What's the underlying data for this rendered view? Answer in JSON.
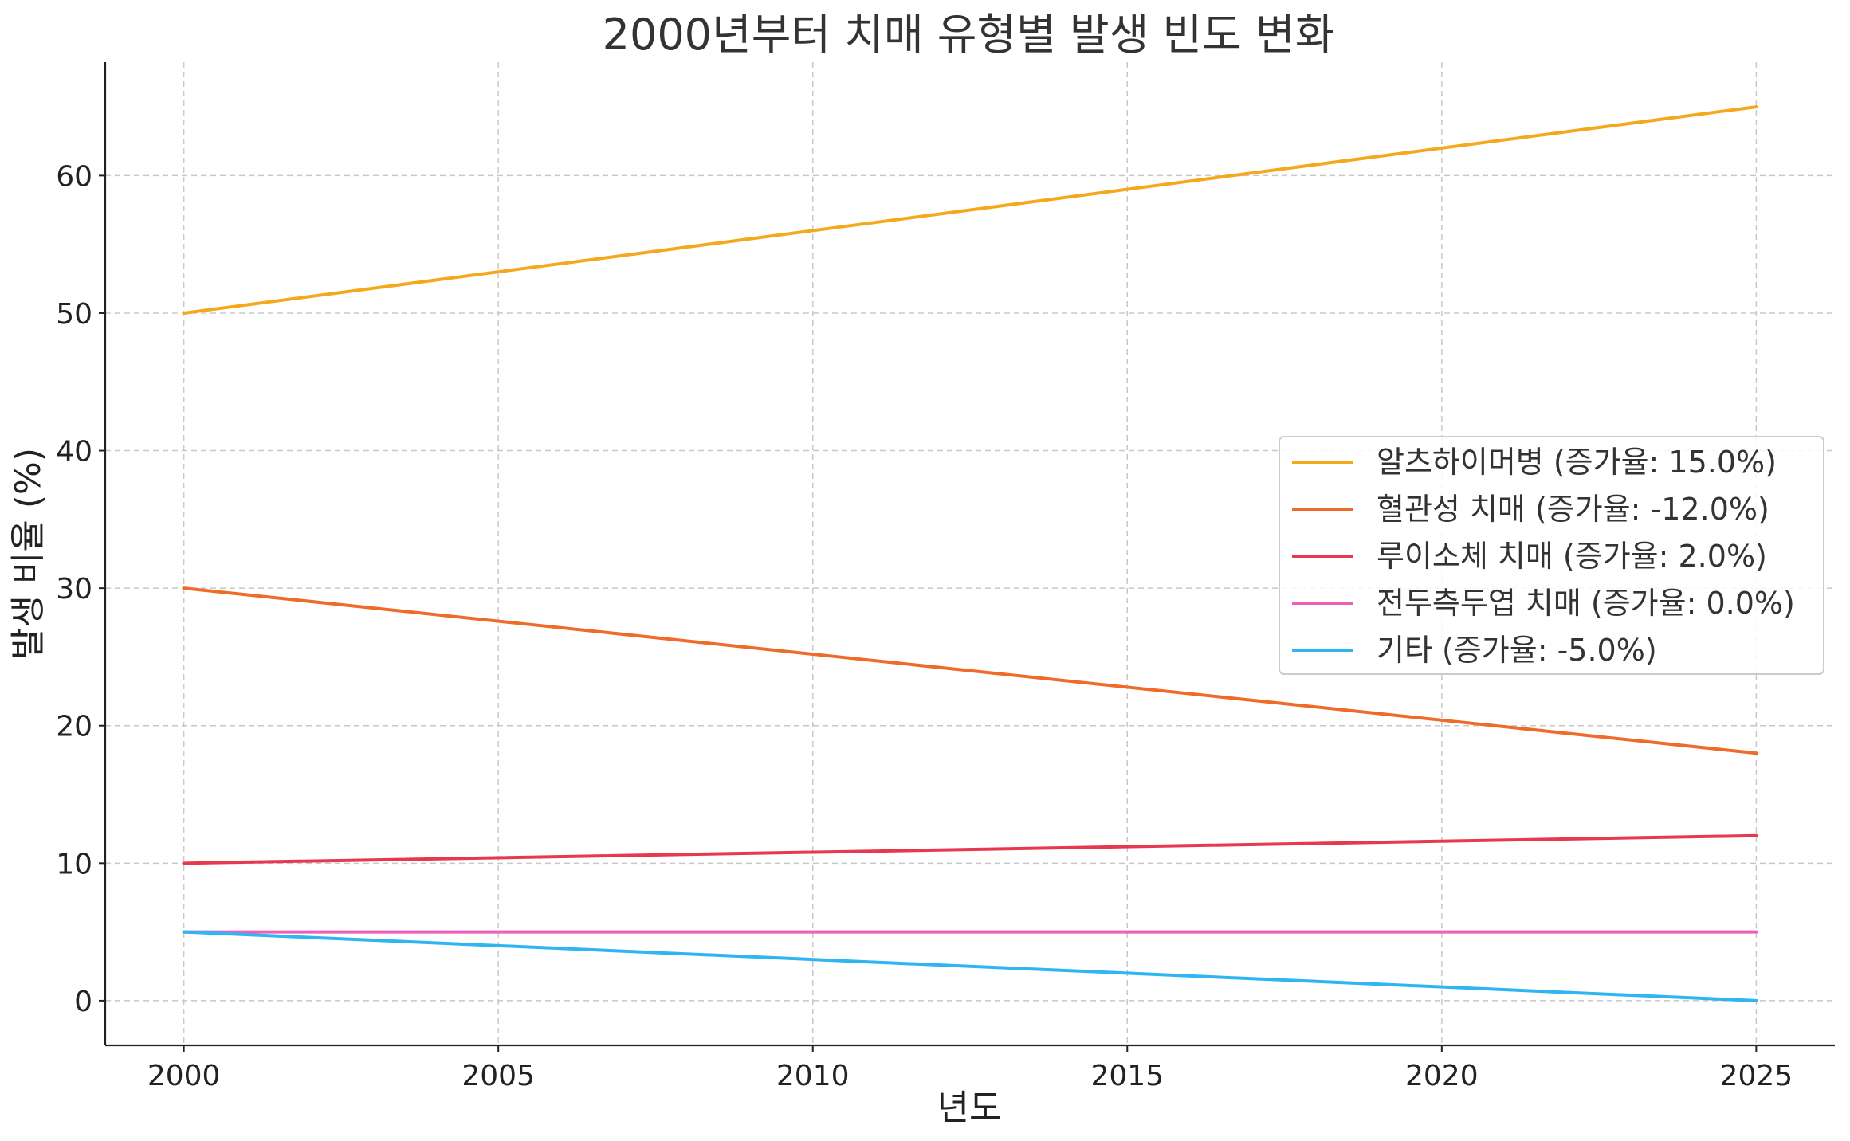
{
  "chart_data": {
    "type": "line",
    "title": "2000년부터 치매 유형별 발생 빈도 변화",
    "xlabel": "년도",
    "ylabel": "발생 비율 (%)",
    "x": [
      2000,
      2025
    ],
    "xlim": [
      1998.75,
      2026.25
    ],
    "ylim": [
      -3.25,
      68.25
    ],
    "xticks": [
      2000,
      2005,
      2010,
      2015,
      2020,
      2025
    ],
    "yticks": [
      0,
      10,
      20,
      30,
      40,
      50,
      60
    ],
    "grid": true,
    "legend_position": "center-right",
    "series": [
      {
        "name": "알츠하이머병 (증가율: 15.0%)",
        "color": "#f5a81c",
        "values": [
          50,
          65
        ]
      },
      {
        "name": "혈관성 치매 (증가율: -12.0%)",
        "color": "#ef6b2a",
        "values": [
          30,
          18
        ]
      },
      {
        "name": "루이소체 치매 (증가율: 2.0%)",
        "color": "#e8384f",
        "values": [
          10,
          12
        ]
      },
      {
        "name": "전두측두엽 치매 (증가율: 0.0%)",
        "color": "#ec5fbb",
        "values": [
          5,
          5
        ]
      },
      {
        "name": "기타 (증가율: -5.0%)",
        "color": "#2fb5f2",
        "values": [
          5,
          0
        ]
      }
    ]
  }
}
